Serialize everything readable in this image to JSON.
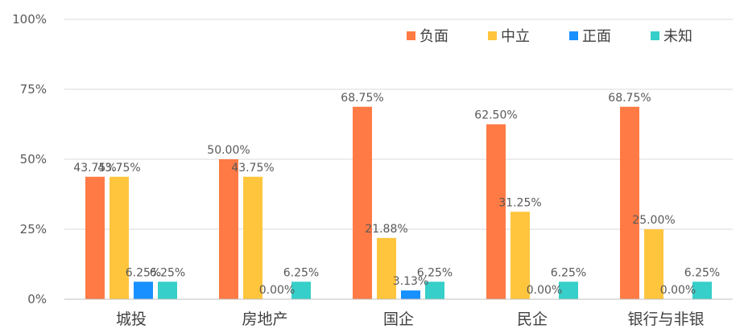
{
  "chart_data": {
    "type": "bar",
    "title": "",
    "xlabel": "",
    "ylabel": "",
    "ylim": [
      0,
      100
    ],
    "yticks": [
      "0%",
      "25%",
      "50%",
      "75%",
      "100%"
    ],
    "ytick_values": [
      0,
      25,
      50,
      75,
      100
    ],
    "grid": true,
    "legend_position": "top-right",
    "categories": [
      "城投",
      "房地产",
      "国企",
      "民企",
      "银行与非银"
    ],
    "series": [
      {
        "name": "负面",
        "color": "#FF7A45",
        "values": [
          43.75,
          50.0,
          68.75,
          62.5,
          68.75
        ],
        "labels": [
          "43.75%",
          "50.00%",
          "68.75%",
          "62.50%",
          "68.75%"
        ]
      },
      {
        "name": "中立",
        "color": "#FFC53D",
        "values": [
          43.75,
          43.75,
          21.88,
          31.25,
          25.0
        ],
        "labels": [
          "43.75%",
          "43.75%",
          "21.88%",
          "31.25%",
          "25.00%"
        ]
      },
      {
        "name": "正面",
        "color": "#1890FF",
        "values": [
          6.25,
          0.0,
          3.13,
          0.0,
          0.0
        ],
        "labels": [
          "6.25%",
          "0.00%",
          "3.13%",
          "0.00%",
          "0.00%"
        ]
      },
      {
        "name": "未知",
        "color": "#36CFC9",
        "values": [
          6.25,
          6.25,
          6.25,
          6.25,
          6.25
        ],
        "labels": [
          "6.25%",
          "6.25%",
          "6.25%",
          "6.25%",
          "6.25%"
        ]
      }
    ]
  }
}
